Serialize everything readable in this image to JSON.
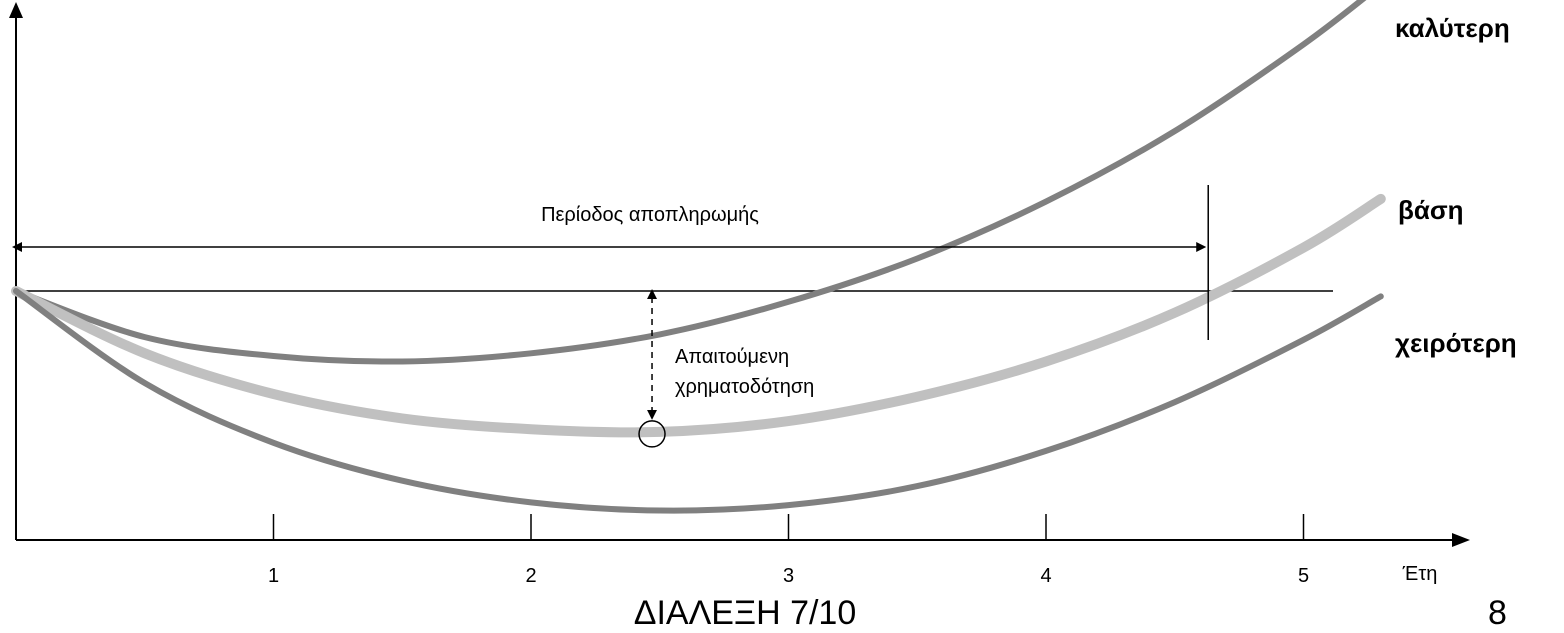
{
  "chart_data": {
    "type": "line",
    "xlabel": "Έτη",
    "ylabel": "",
    "x_ticks": [
      "1",
      "2",
      "3",
      "4",
      "5"
    ],
    "xlim": [
      0,
      5.35
    ],
    "ylim": [
      -1.0,
      1.2
    ],
    "grid": false,
    "legend": "right",
    "reference_line_y": 0,
    "series": [
      {
        "name": "καλύτερη",
        "color": "#808080",
        "x": [
          0,
          0.5,
          1,
          1.5,
          2,
          2.5,
          3,
          3.5,
          4,
          4.5,
          5,
          5.3
        ],
        "y": [
          0,
          -0.17,
          -0.24,
          -0.26,
          -0.23,
          -0.16,
          -0.04,
          0.12,
          0.33,
          0.59,
          0.91,
          1.13
        ]
      },
      {
        "name": "βάση",
        "color": "#c0c0c0",
        "x": [
          0,
          0.5,
          1,
          1.5,
          2,
          2.5,
          3,
          3.5,
          4,
          4.5,
          5,
          5.3
        ],
        "y": [
          0,
          -0.23,
          -0.38,
          -0.47,
          -0.51,
          -0.52,
          -0.48,
          -0.39,
          -0.26,
          -0.08,
          0.16,
          0.34
        ]
      },
      {
        "name": "χειρότερη",
        "color": "#808080",
        "x": [
          0,
          0.5,
          1,
          1.5,
          2,
          2.5,
          3,
          3.5,
          4,
          4.5,
          5,
          5.3
        ],
        "y": [
          0,
          -0.34,
          -0.56,
          -0.7,
          -0.78,
          -0.81,
          -0.79,
          -0.72,
          -0.59,
          -0.41,
          -0.18,
          -0.02
        ]
      }
    ],
    "annotations": {
      "payback_label": "Περίοδος αποπληρωμής",
      "payback_end_x": 4.63,
      "financing_label_line1": "Απαιτούμενη",
      "financing_label_line2": "χρηματοδότηση",
      "min_point": {
        "x": 2.47,
        "y": -0.52
      }
    }
  },
  "footer": {
    "title": "ΔΙΑΛΕΞΗ 7/10",
    "page": "8"
  }
}
